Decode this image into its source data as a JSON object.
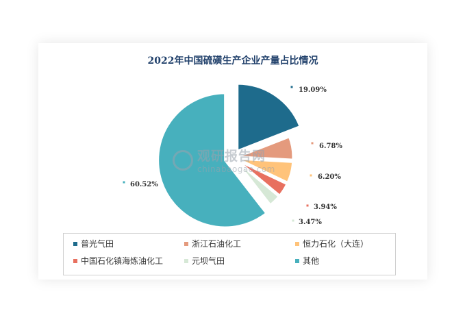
{
  "chart_data": {
    "type": "pie",
    "title": "2022年中国硫磺生产企业产量占比情况",
    "slices": [
      {
        "name": "普光气田",
        "value": 19.09,
        "label": "19.09%",
        "color": "#1e6b8c"
      },
      {
        "name": "浙江石油化工",
        "value": 6.78,
        "label": "6.78%",
        "color": "#e49a7d"
      },
      {
        "name": "恒力石化（大连）",
        "value": 6.2,
        "label": "6.20%",
        "color": "#ffc37a"
      },
      {
        "name": "中国石化镇海炼油化工",
        "value": 3.94,
        "label": "3.94%",
        "color": "#e8705f"
      },
      {
        "name": "元坝气田",
        "value": 3.47,
        "label": "3.47%",
        "color": "#d6e8d6"
      },
      {
        "name": "其他",
        "value": 60.52,
        "label": "60.52%",
        "color": "#47b0bd"
      }
    ],
    "legend_placement": "bottom"
  },
  "watermark": {
    "main": "观研报告网",
    "sub": "chinabaogao.com"
  }
}
